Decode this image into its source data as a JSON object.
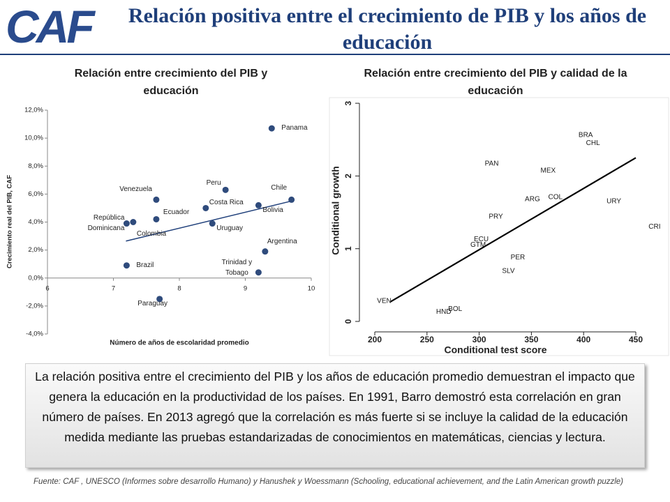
{
  "header": {
    "logo": "CAF",
    "title": "Relación positiva entre el crecimiento de PIB y los años de educación"
  },
  "chart_data": [
    {
      "type": "scatter",
      "title": "Relación entre crecimiento del PIB y educación",
      "xlabel": "Número de años de escolaridad promedio",
      "ylabel": "Crecimiento real del PIB, CAF",
      "xlim": [
        6,
        10
      ],
      "xticks": [
        6,
        7,
        8,
        9,
        10
      ],
      "ylim": [
        -4,
        12
      ],
      "yticks": [
        {
          "value": -4,
          "label": "-4,0%"
        },
        {
          "value": -2,
          "label": "-2,0%"
        },
        {
          "value": 0,
          "label": "0,0%"
        },
        {
          "value": 2,
          "label": "2,0%"
        },
        {
          "value": 4,
          "label": "4,0%"
        },
        {
          "value": 6,
          "label": "6,0%"
        },
        {
          "value": 8,
          "label": "8,0%"
        },
        {
          "value": 10,
          "label": "10,0%"
        },
        {
          "value": 12,
          "label": "12,0%"
        }
      ],
      "color": "#2f4b7c",
      "point_labels": [
        "Panama",
        "Peru",
        "Venezuela",
        "Chile",
        "Costa Rica",
        "Bolivia",
        "Ecuador",
        "República Dominicana",
        "Colombia",
        "Uruguay",
        "Argentina",
        "Trinidad y Tobago",
        "Brazil",
        "Paraguay"
      ],
      "x": [
        9.4,
        8.7,
        7.65,
        9.7,
        8.4,
        9.2,
        7.65,
        7.2,
        7.3,
        8.5,
        9.3,
        9.2,
        7.2,
        7.7
      ],
      "values": [
        10.7,
        6.3,
        5.6,
        5.6,
        5.0,
        5.2,
        4.2,
        3.9,
        4.0,
        3.9,
        1.9,
        0.4,
        0.9,
        -1.5
      ],
      "trend": {
        "x": [
          7.19,
          9.68
        ],
        "values": [
          2.64,
          5.48
        ]
      }
    },
    {
      "type": "scatter",
      "title": "Relación entre crecimiento del PIB y calidad de la educación",
      "xlabel": "Conditional test score",
      "ylabel": "Conditional growth",
      "xlim": [
        160,
        480
      ],
      "xticks": [
        200,
        250,
        300,
        350,
        400,
        450
      ],
      "ylim": [
        -0.2,
        3.1
      ],
      "yticks": [
        0,
        1,
        2,
        3
      ],
      "color": "#1a1a1a",
      "point_labels": [
        "BRA",
        "CHL",
        "PAN",
        "MEX",
        "ARG",
        "COL",
        "URY",
        "CRI",
        "PRY",
        "ECU",
        "GTM",
        "PER",
        "SLV",
        "VEN",
        "HND",
        "BOL"
      ],
      "x": [
        402,
        409,
        312,
        366,
        351,
        373,
        429,
        468,
        316,
        302,
        299,
        337,
        328,
        209,
        266,
        277
      ],
      "values": [
        2.56,
        2.45,
        2.17,
        2.07,
        1.68,
        1.71,
        1.65,
        1.3,
        1.44,
        1.13,
        1.05,
        0.88,
        0.69,
        0.28,
        0.13,
        0.17
      ],
      "trend": {
        "x": [
          215,
          450
        ],
        "values": [
          0.27,
          2.25
        ]
      }
    }
  ],
  "textbox": "La relación positiva entre el crecimiento del PIB y los años de educación promedio demuestran el impacto que genera la educación en la productividad de los países. En 1991, Barro demostró esta correlación  en gran número de países. En 2013 agregó que la correlación es más fuerte si se incluye la calidad de la educación medida mediante las pruebas estandarizadas de conocimientos en matemáticas, ciencias y lectura.",
  "source": "Fuente: CAF , UNESCO (Informes sobre desarrollo Humano) y Hanushek y Woessmann (Schooling, educational achievement, and the Latin American growth puzzle)"
}
